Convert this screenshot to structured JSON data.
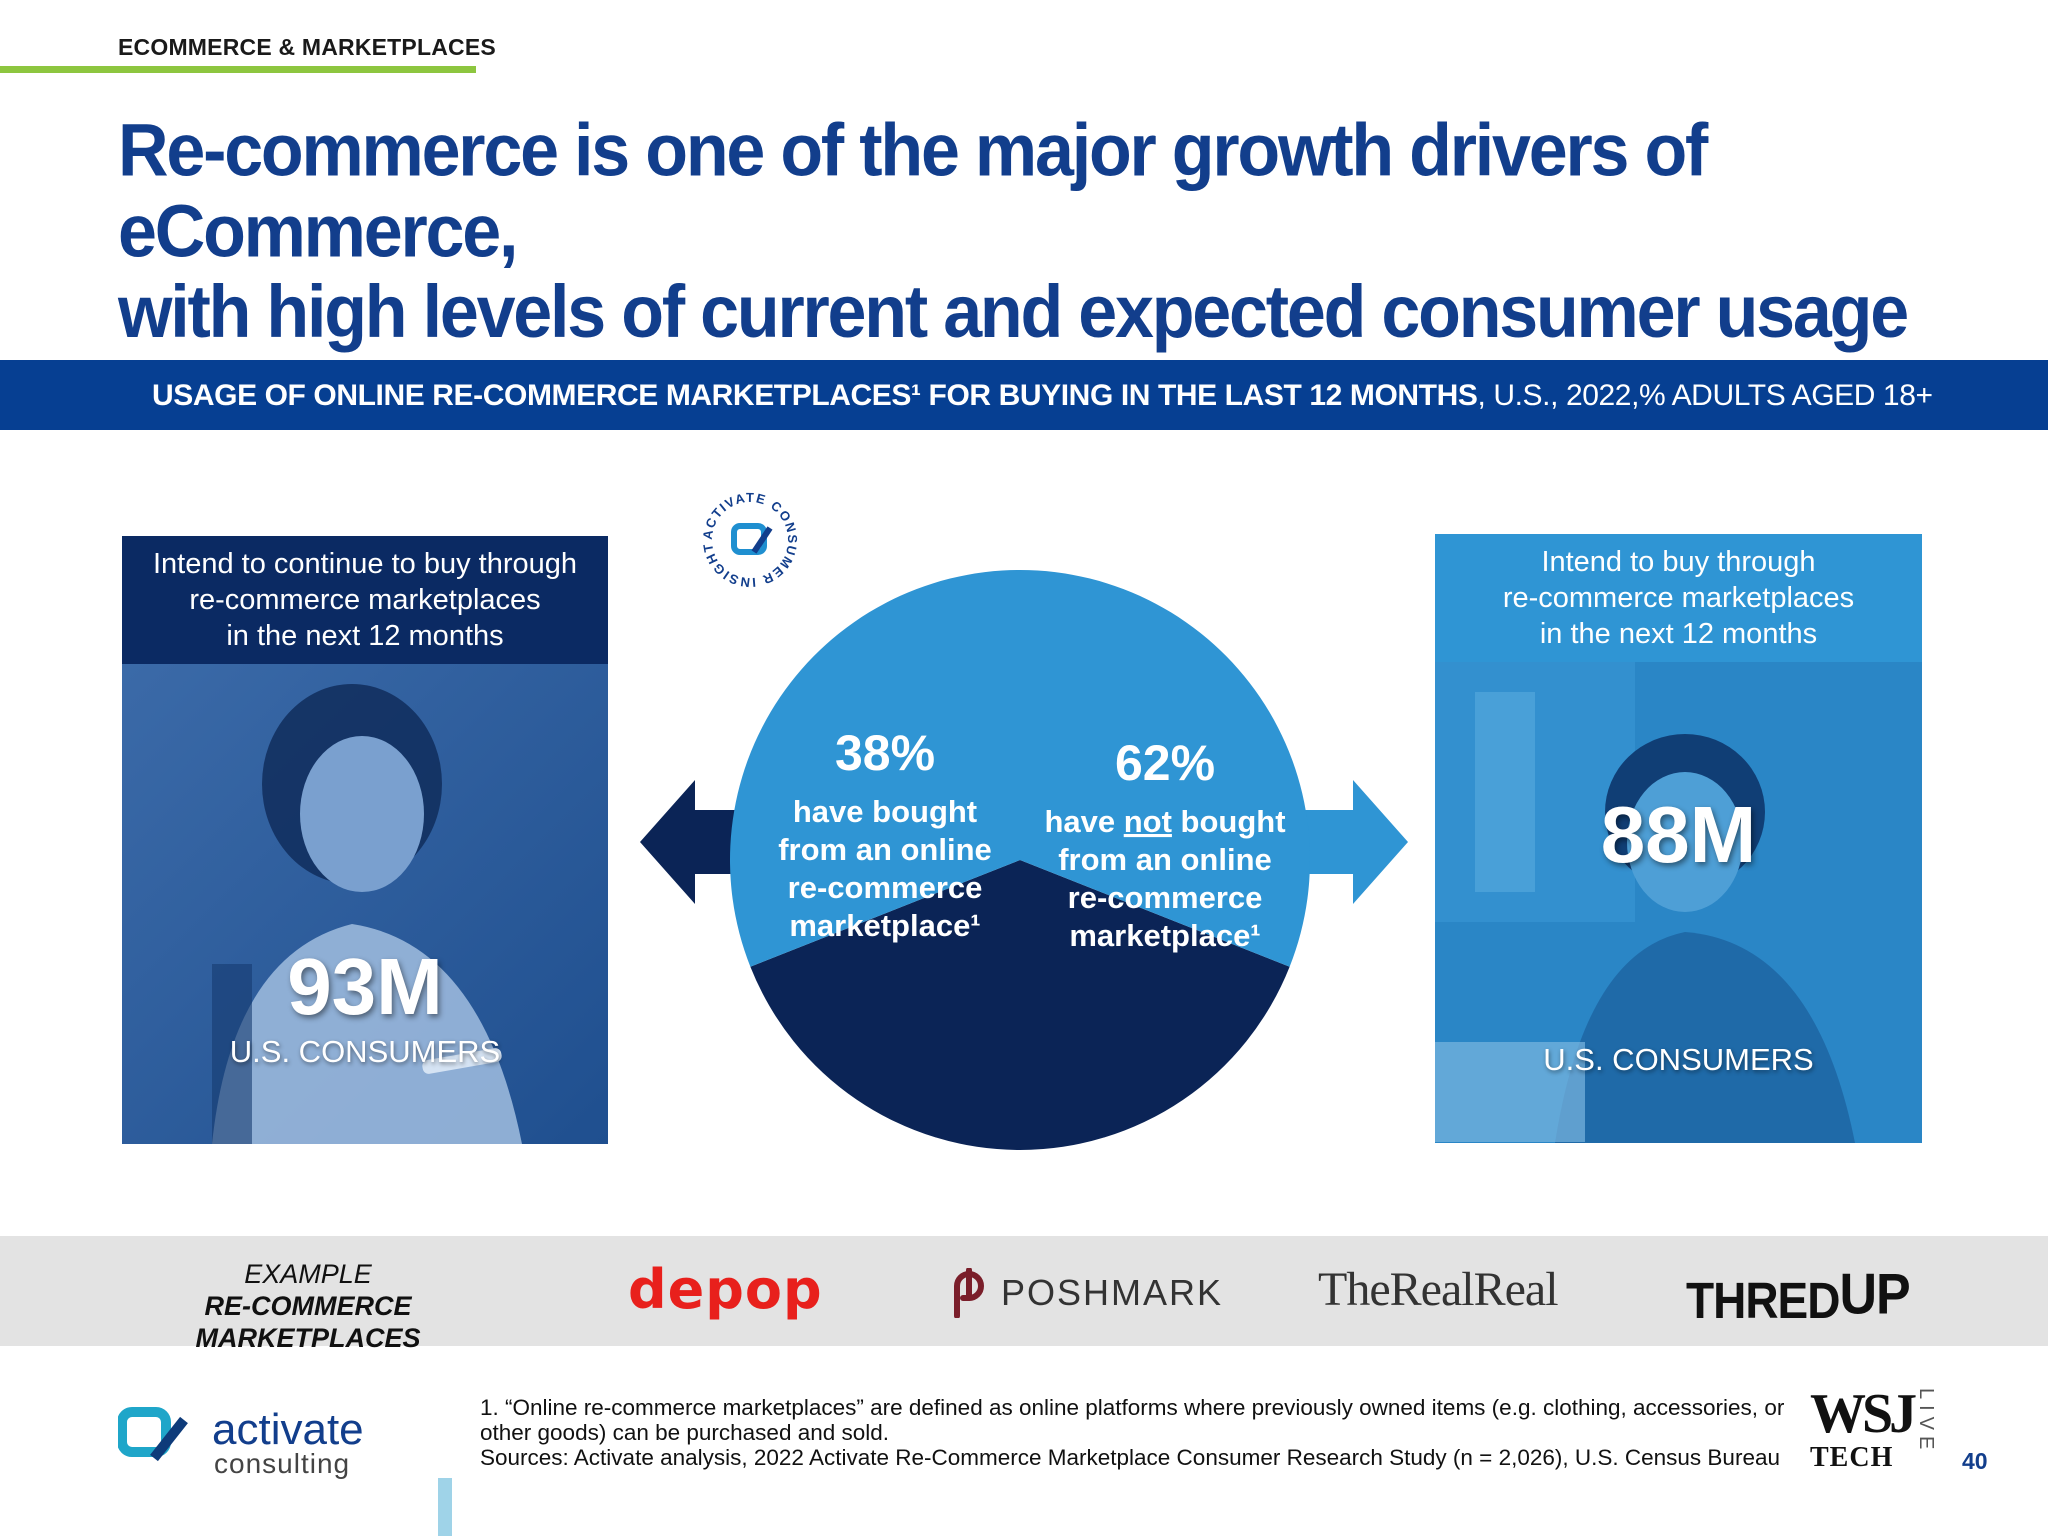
{
  "section_label": "ECOMMERCE & MARKETPLACES",
  "headline": {
    "line1": "Re-commerce is one of the major growth drivers of eCommerce,",
    "line2": "with high levels of current and expected consumer usage"
  },
  "banner": {
    "bold": "USAGE OF ONLINE RE-COMMERCE MARKETPLACES¹ FOR BUYING IN THE LAST 12 MONTHS",
    "rest": ", U.S., 2022,% ADULTS AGED 18+"
  },
  "left_panel": {
    "header_lines": [
      "Intend to continue to buy through",
      "re-commerce marketplaces",
      "in the next 12 months"
    ],
    "value": "93M",
    "label": "U.S. CONSUMERS"
  },
  "right_panel": {
    "header_lines": [
      "Intend to buy through",
      "re-commerce marketplaces",
      "in the next 12 months"
    ],
    "value": "88M",
    "label": "U.S. CONSUMERS"
  },
  "badge": {
    "text": "ACTIVATE CONSUMER INSIGHT"
  },
  "chart_data": {
    "type": "pie",
    "slices": [
      {
        "label": "have bought from an online re-commerce marketplace¹",
        "value": 38,
        "display": "38%",
        "lines": [
          "have bought",
          "from an online",
          "re-commerce",
          "marketplace¹"
        ],
        "color": "#0b2456"
      },
      {
        "label": "have not bought from an online re-commerce marketplace¹",
        "value": 62,
        "display": "62%",
        "lines": [
          "have not bought",
          "from an online",
          "re-commerce",
          "marketplace¹"
        ],
        "color": "#2f95d4"
      }
    ]
  },
  "logos": {
    "label_line1": "EXAMPLE",
    "label_line2": "RE-COMMERCE MARKETPLACES",
    "depop": "depop",
    "poshmark": "POSHMARK",
    "realreal": "TheRealReal",
    "thredup_a": "THRED",
    "thredup_b": "UP"
  },
  "footer": {
    "footnote_1": "1. “Online re-commerce marketplaces” are defined as online platforms where previously owned items (e.g. clothing, accessories, or other goods) can be purchased and sold.",
    "sources": "Sources: Activate analysis, 2022 Activate Re-Commerce Marketplace Consumer Research Study (n = 2,026), U.S. Census Bureau",
    "activate_name": "activate",
    "activate_sub": "consulting",
    "wsj_top": "WSJ",
    "wsj_bottom": "TECH",
    "wsj_live": "LIVE",
    "page_number": "40"
  },
  "colors": {
    "brand_blue": "#123e8c",
    "banner_blue": "#063f92",
    "dark_navy": "#0b2456",
    "light_blue": "#2f95d4",
    "accent_green": "#8dc63f"
  }
}
